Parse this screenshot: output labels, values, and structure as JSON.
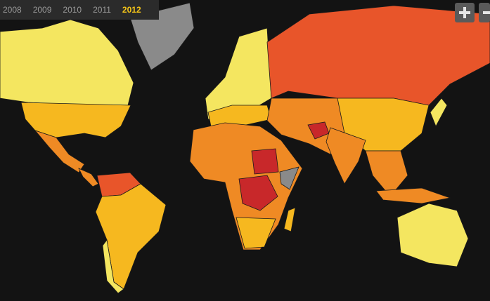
{
  "year_tabs": {
    "years": [
      "2008",
      "2009",
      "2010",
      "2011",
      "2012"
    ],
    "active": 4
  }
}
